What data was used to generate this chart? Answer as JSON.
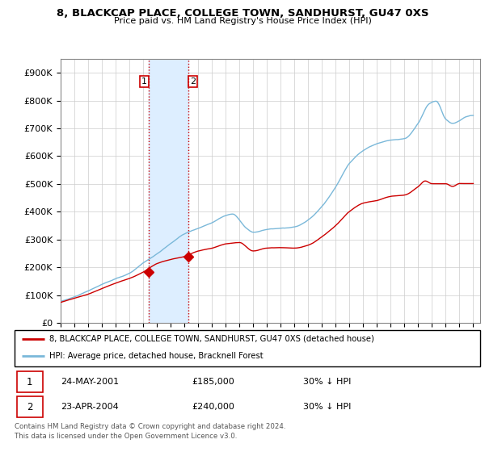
{
  "title1": "8, BLACKCAP PLACE, COLLEGE TOWN, SANDHURST, GU47 0XS",
  "title2": "Price paid vs. HM Land Registry's House Price Index (HPI)",
  "legend_line1": "8, BLACKCAP PLACE, COLLEGE TOWN, SANDHURST, GU47 0XS (detached house)",
  "legend_line2": "HPI: Average price, detached house, Bracknell Forest",
  "footer1": "Contains HM Land Registry data © Crown copyright and database right 2024.",
  "footer2": "This data is licensed under the Open Government Licence v3.0.",
  "transaction1_label": "1",
  "transaction1_date": "24-MAY-2001",
  "transaction1_price": "£185,000",
  "transaction1_hpi": "30% ↓ HPI",
  "transaction2_label": "2",
  "transaction2_date": "23-APR-2004",
  "transaction2_price": "£240,000",
  "transaction2_hpi": "30% ↓ HPI",
  "hpi_color": "#7ab8d9",
  "price_color": "#cc0000",
  "highlight_color": "#ddeeff",
  "vline_color": "#cc0000",
  "marker1_x": 2001.38,
  "marker1_y": 185000,
  "marker2_x": 2004.31,
  "marker2_y": 240000,
  "vline1_x": 2001.38,
  "vline2_x": 2004.31,
  "ylim_min": 0,
  "ylim_max": 950000,
  "xlim_min": 1995,
  "xlim_max": 2025.5,
  "yticks": [
    0,
    100000,
    200000,
    300000,
    400000,
    500000,
    600000,
    700000,
    800000,
    900000
  ],
  "ytick_labels": [
    "£0",
    "£100K",
    "£200K",
    "£300K",
    "£400K",
    "£500K",
    "£600K",
    "£700K",
    "£800K",
    "£900K"
  ],
  "xticks": [
    1995,
    1996,
    1997,
    1998,
    1999,
    2000,
    2001,
    2002,
    2003,
    2004,
    2005,
    2006,
    2007,
    2008,
    2009,
    2010,
    2011,
    2012,
    2013,
    2014,
    2015,
    2016,
    2017,
    2018,
    2019,
    2020,
    2021,
    2022,
    2023,
    2024,
    2025
  ]
}
